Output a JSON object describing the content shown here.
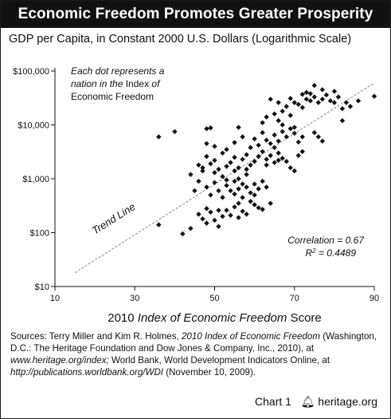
{
  "header": {
    "title": "Economic Freedom Promotes Greater Prosperity",
    "subtitle": "GDP per Capita, in Constant 2000 U.S. Dollars (Logarithmic Scale)"
  },
  "chart_data": {
    "type": "scatter",
    "title": "Economic Freedom Promotes Greater Prosperity",
    "ylabel": "GDP per Capita, in Constant 2000 U.S. Dollars (Logarithmic Scale)",
    "xlabel_parts": [
      "2010 ",
      "Index of Economic Freedom",
      " Score"
    ],
    "y_scale": "log",
    "xlim": [
      10,
      90
    ],
    "ylim": [
      10,
      100000
    ],
    "x_ticks": [
      10,
      30,
      50,
      70,
      90
    ],
    "x_tick_labels": [
      "10",
      "30",
      "50",
      "70",
      "90"
    ],
    "y_ticks": [
      10,
      100,
      1000,
      10000,
      100000
    ],
    "y_tick_labels": [
      "$10",
      "$100",
      "$1,000",
      "$10,000",
      "$100,000"
    ],
    "grid": false,
    "annotation_lines": [
      "Each dot represents a",
      "nation in the ",
      "Index",
      " of",
      "Economic Freedom"
    ],
    "trend_line": {
      "label": "Trend Line",
      "from": [
        15,
        18
      ],
      "to": [
        90,
        60000
      ]
    },
    "stats_lines": [
      "Correlation = 0.67",
      "R",
      "2",
      " = 0.4489"
    ],
    "colors": {
      "marker": "#111111",
      "trend_line": "#888888"
    },
    "points": [
      [
        36,
        140
      ],
      [
        42,
        95
      ],
      [
        44,
        120
      ],
      [
        46,
        220
      ],
      [
        47,
        180
      ],
      [
        48,
        280
      ],
      [
        48,
        150
      ],
      [
        49,
        240
      ],
      [
        50,
        170
      ],
      [
        51,
        130
      ],
      [
        52,
        200
      ],
      [
        53,
        260
      ],
      [
        54,
        210
      ],
      [
        55,
        300
      ],
      [
        56,
        350
      ],
      [
        57,
        250
      ],
      [
        58,
        220
      ],
      [
        59,
        380
      ],
      [
        60,
        330
      ],
      [
        61,
        290
      ],
      [
        62,
        270
      ],
      [
        64,
        350
      ],
      [
        56,
        190
      ],
      [
        51,
        260
      ],
      [
        45,
        600
      ],
      [
        46,
        900
      ],
      [
        47,
        1400
      ],
      [
        48,
        700
      ],
      [
        49,
        500
      ],
      [
        50,
        850
      ],
      [
        51,
        600
      ],
      [
        52,
        450
      ],
      [
        52,
        1100
      ],
      [
        53,
        750
      ],
      [
        54,
        600
      ],
      [
        55,
        520
      ],
      [
        55,
        900
      ],
      [
        56,
        650
      ],
      [
        57,
        800
      ],
      [
        58,
        700
      ],
      [
        58,
        1200
      ],
      [
        59,
        550
      ],
      [
        60,
        800
      ],
      [
        61,
        650
      ],
      [
        62,
        900
      ],
      [
        63,
        700
      ],
      [
        44,
        1200
      ],
      [
        50,
        1300
      ],
      [
        53,
        950
      ],
      [
        56,
        1000
      ],
      [
        60,
        500
      ],
      [
        57,
        450
      ],
      [
        46,
        1800
      ],
      [
        47,
        1600
      ],
      [
        48,
        2600
      ],
      [
        49,
        1900
      ],
      [
        50,
        2200
      ],
      [
        51,
        1500
      ],
      [
        52,
        3000
      ],
      [
        53,
        1700
      ],
      [
        54,
        2000
      ],
      [
        55,
        2500
      ],
      [
        56,
        1600
      ],
      [
        57,
        2300
      ],
      [
        58,
        2800
      ],
      [
        59,
        1800
      ],
      [
        60,
        2100
      ],
      [
        61,
        2600
      ],
      [
        62,
        3200
      ],
      [
        63,
        2300
      ],
      [
        64,
        2700
      ],
      [
        65,
        2000
      ],
      [
        66,
        3000
      ],
      [
        67,
        2400
      ],
      [
        68,
        2100
      ],
      [
        69,
        1600
      ],
      [
        70,
        1400
      ],
      [
        71,
        2700
      ],
      [
        72,
        3200
      ],
      [
        58,
        1500
      ],
      [
        55,
        1400
      ],
      [
        63,
        1800
      ],
      [
        66,
        2200
      ],
      [
        48,
        4500
      ],
      [
        50,
        4000
      ],
      [
        53,
        3500
      ],
      [
        55,
        4700
      ],
      [
        57,
        6000
      ],
      [
        59,
        3800
      ],
      [
        60,
        5500
      ],
      [
        61,
        4200
      ],
      [
        62,
        7200
      ],
      [
        63,
        5200
      ],
      [
        64,
        4500
      ],
      [
        65,
        6500
      ],
      [
        66,
        5000
      ],
      [
        67,
        7500
      ],
      [
        68,
        6000
      ],
      [
        69,
        8500
      ],
      [
        70,
        7000
      ],
      [
        71,
        4800
      ],
      [
        72,
        6000
      ],
      [
        65,
        3800
      ],
      [
        36,
        6000
      ],
      [
        40,
        7500
      ],
      [
        48,
        8500
      ],
      [
        49,
        8800
      ],
      [
        56,
        9000
      ],
      [
        62,
        11000
      ],
      [
        63,
        14000
      ],
      [
        65,
        16000
      ],
      [
        66,
        12000
      ],
      [
        67,
        18000
      ],
      [
        68,
        22000
      ],
      [
        69,
        15000
      ],
      [
        70,
        26000
      ],
      [
        71,
        24000
      ],
      [
        72,
        21000
      ],
      [
        73,
        30000
      ],
      [
        74,
        28000
      ],
      [
        75,
        33000
      ],
      [
        76,
        26000
      ],
      [
        77,
        30000
      ],
      [
        78,
        36000
      ],
      [
        79,
        28000
      ],
      [
        80,
        26000
      ],
      [
        81,
        33000
      ],
      [
        82,
        20000
      ],
      [
        82,
        12000
      ],
      [
        83,
        26000
      ],
      [
        84,
        22000
      ],
      [
        86,
        28000
      ],
      [
        73,
        40000
      ],
      [
        74,
        38000
      ],
      [
        75,
        54000
      ],
      [
        77,
        45000
      ],
      [
        80,
        42000
      ],
      [
        90,
        34000
      ],
      [
        64,
        30000
      ],
      [
        66,
        26000
      ],
      [
        69,
        31000
      ],
      [
        72,
        37000
      ],
      [
        76,
        6000
      ],
      [
        77,
        5000
      ],
      [
        75,
        7200
      ],
      [
        70,
        9000
      ],
      [
        67,
        10000
      ]
    ]
  },
  "source": {
    "prefix": "Sources:",
    "authors": " Terry Miller and Kim R. Holmes, ",
    "book": "2010 Index of Economic Freedom",
    "publisher": " (Washington, D.C.: The Heritage Foundation and Dow Jones & Company, Inc., 2010), at ",
    "url1": "www.heritage.org/index;",
    "wb": " World Bank, World Development Indicators Online, at ",
    "url2": "http://publications.worldbank.org/WDI",
    "date": " (November 10, 2009)."
  },
  "footer": {
    "chart_label": "Chart 1",
    "site": "heritage.org",
    "logo_icon": "bell-icon"
  }
}
